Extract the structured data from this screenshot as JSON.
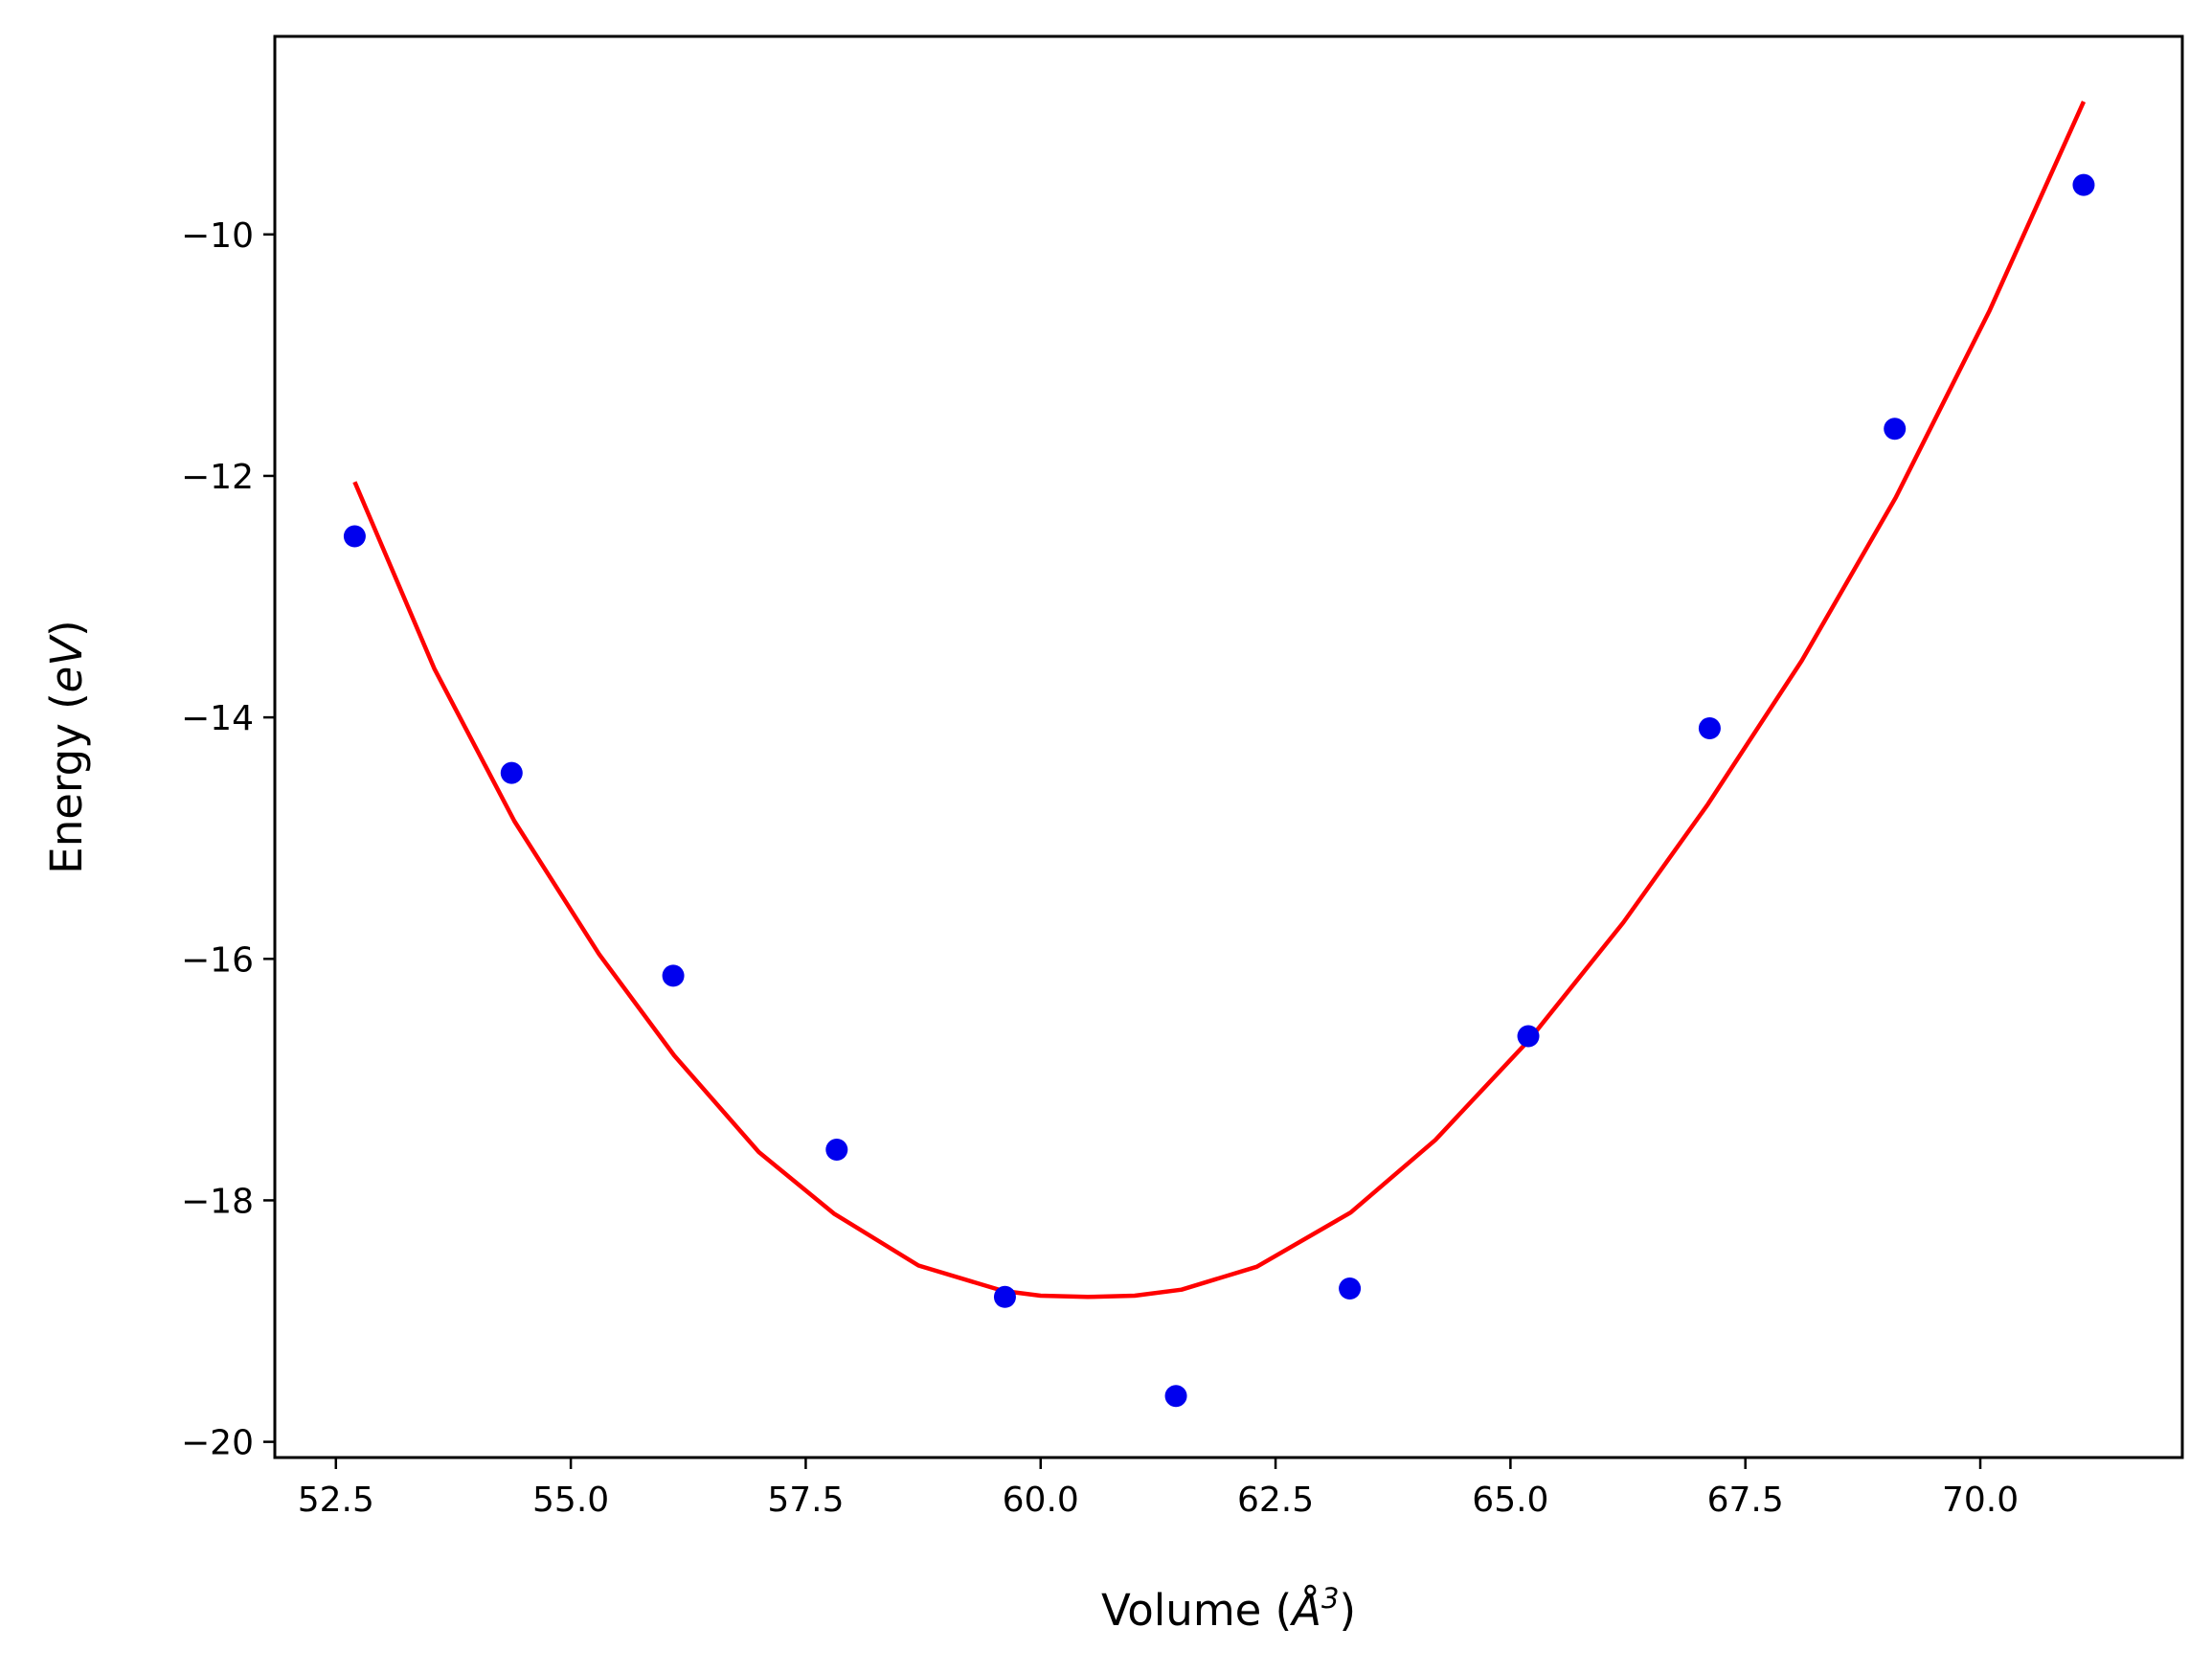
{
  "chart_data": {
    "type": "scatter",
    "xlabel_prefix": "Volume (",
    "xlabel_unit": "Å",
    "xlabel_exp": "3",
    "xlabel_suffix": ")",
    "ylabel_prefix": "Energy (",
    "ylabel_unit": "eV",
    "ylabel_suffix": ")",
    "xlim": [
      51.85,
      72.15
    ],
    "ylim": [
      -20.13,
      -8.36
    ],
    "xticks": [
      52.5,
      55.0,
      57.5,
      60.0,
      62.5,
      65.0,
      67.5,
      70.0
    ],
    "xtick_labels": [
      "52.5",
      "55.0",
      "57.5",
      "60.0",
      "62.5",
      "65.0",
      "67.5",
      "70.0"
    ],
    "yticks": [
      -20,
      -18,
      -16,
      -14,
      -12,
      -10
    ],
    "ytick_labels": [
      "−20",
      "−18",
      "−16",
      "−14",
      "−12",
      "−10"
    ],
    "grid": false,
    "series": [
      {
        "kind": "points",
        "color": "#0000ee",
        "x": [
          52.7,
          54.37,
          56.09,
          57.83,
          59.62,
          61.44,
          63.29,
          65.19,
          67.12,
          69.09,
          71.1
        ],
        "y": [
          -12.5,
          -14.46,
          -16.14,
          -17.58,
          -18.8,
          -19.62,
          -18.73,
          -16.64,
          -14.09,
          -11.61,
          -9.59
        ]
      },
      {
        "kind": "fit",
        "color": "#ff0000",
        "x": [
          52.7,
          53.55,
          54.4,
          55.3,
          56.1,
          57.0,
          57.8,
          58.7,
          59.6,
          60.0,
          60.5,
          61.0,
          61.5,
          62.3,
          63.3,
          64.2,
          65.2,
          66.2,
          67.1,
          68.1,
          69.1,
          70.1,
          71.1
        ],
        "y": [
          -12.05,
          -13.6,
          -14.86,
          -15.96,
          -16.8,
          -17.6,
          -18.11,
          -18.54,
          -18.75,
          -18.79,
          -18.8,
          -18.79,
          -18.74,
          -18.55,
          -18.1,
          -17.5,
          -16.67,
          -15.7,
          -14.72,
          -13.53,
          -12.18,
          -10.63,
          -8.9
        ]
      }
    ]
  }
}
